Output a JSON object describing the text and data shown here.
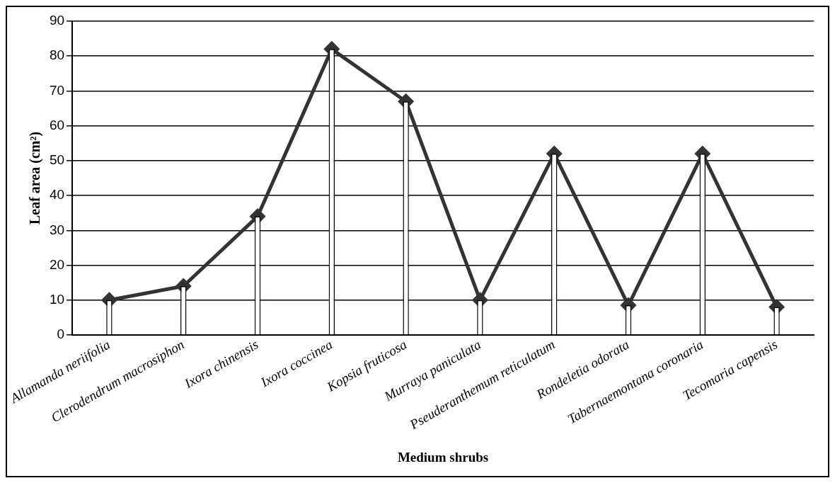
{
  "chart_data": {
    "type": "line",
    "xlabel": "Medium shrubs",
    "ylabel": "Leaf area (cm²)",
    "categories": [
      "Allamanda neriifolia",
      "Clerodendrum macrosiphon",
      "Ixora chinensis",
      "Ixora coccinea",
      "Kopsia fruticosa",
      "Murraya paniculata",
      "Pseuderanthemum reticulatum",
      "Rondeletia odorata",
      "Tabernaemontana coronaria",
      "Tecomaria capensis"
    ],
    "series": [
      {
        "type": "bar",
        "color": "#ffffff",
        "values": [
          10,
          14,
          34,
          82,
          67,
          10,
          52,
          8.5,
          52,
          8
        ]
      },
      {
        "color": "#333333",
        "values": [
          10,
          14,
          34,
          82,
          67,
          10,
          52,
          8.5,
          52,
          8
        ]
      }
    ],
    "ylim": [
      0,
      90
    ],
    "yticks": [
      0,
      10,
      20,
      30,
      40,
      50,
      60,
      70,
      80,
      90
    ],
    "grid": "y",
    "legend": false,
    "marker": "diamond",
    "line_style": "solid"
  }
}
